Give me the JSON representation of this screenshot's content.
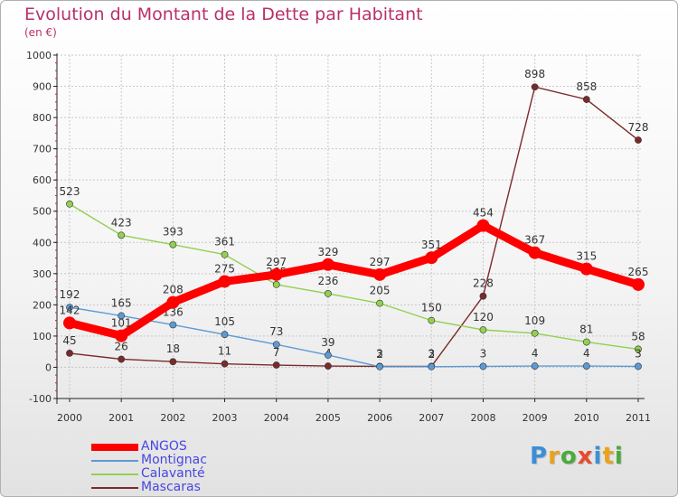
{
  "title": "Evolution du Montant de la Dette par Habitant",
  "unit_label": "(en €)",
  "logo": {
    "letters": [
      "P",
      "r",
      "o",
      "x",
      "i",
      "t",
      "i"
    ],
    "colors": [
      "#3b8fd6",
      "#e8a21c",
      "#4aaa3a",
      "#e84a2e",
      "#3b8fd6",
      "#e8a21c",
      "#4aaa3a"
    ]
  },
  "chart_data": {
    "type": "line",
    "x": [
      "2000",
      "2001",
      "2002",
      "2003",
      "2004",
      "2005",
      "2006",
      "2007",
      "2008",
      "2009",
      "2010",
      "2011"
    ],
    "ylim": [
      -100,
      1000
    ],
    "yticks": [
      "-100",
      "0",
      "100",
      "200",
      "300",
      "400",
      "500",
      "600",
      "700",
      "800",
      "900",
      "1000"
    ],
    "grid": true,
    "legend_position": "bottom-left",
    "series": [
      {
        "name": "ANGOS",
        "color": "#ff0000",
        "values": [
          142,
          101,
          208,
          275,
          297,
          329,
          297,
          351,
          454,
          367,
          315,
          265
        ],
        "labels": [
          "142",
          "101",
          "208",
          "275",
          "297",
          "329",
          "297",
          "351",
          "454",
          "367",
          "315",
          "265"
        ]
      },
      {
        "name": "Montignac",
        "color": "#5b9bd5",
        "values": [
          192,
          165,
          136,
          105,
          73,
          39,
          2,
          2,
          3,
          4,
          4,
          3
        ],
        "labels": [
          "192",
          "165",
          "136",
          "105",
          "73",
          "39",
          "2",
          "2",
          "3",
          "4",
          "4",
          "3"
        ]
      },
      {
        "name": "Calavanté",
        "color": "#92d050",
        "values": [
          523,
          423,
          393,
          361,
          265,
          236,
          205,
          150,
          120,
          109,
          81,
          58
        ],
        "labels": [
          "523",
          "423",
          "393",
          "361",
          "265",
          "236",
          "205",
          "150",
          "120",
          "109",
          "81",
          "58"
        ]
      },
      {
        "name": "Mascaras",
        "color": "#7b2a2a",
        "values": [
          45,
          26,
          18,
          11,
          7,
          4,
          3,
          3,
          228,
          898,
          858,
          728
        ],
        "labels": [
          "45",
          "26",
          "18",
          "11",
          "7",
          "4",
          "3",
          "3",
          "228",
          "898",
          "858",
          "728"
        ]
      }
    ]
  }
}
